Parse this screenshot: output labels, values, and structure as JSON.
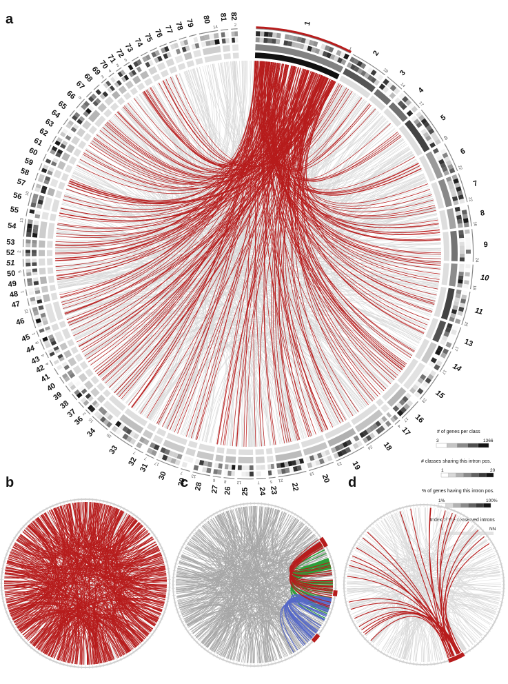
{
  "panels": {
    "a": "a",
    "b": "b",
    "c": "c",
    "d": "d"
  },
  "main_circle": {
    "classes": [
      {
        "label": "1",
        "count": "1"
      },
      {
        "label": "2",
        "count": "28"
      },
      {
        "label": "3",
        "count": "14"
      },
      {
        "label": "4",
        "count": "17"
      },
      {
        "label": "5",
        "count": "46"
      },
      {
        "label": "6",
        "count": "22"
      },
      {
        "label": "7",
        "count": "22"
      },
      {
        "label": "8",
        "count": "16"
      },
      {
        "label": "9",
        "count": "24"
      },
      {
        "label": "10",
        "count": "18"
      },
      {
        "label": "11",
        "count": "25"
      },
      {
        "label": "13",
        "count": "17"
      },
      {
        "label": "14",
        "count": "17"
      },
      {
        "label": "15",
        "count": "23"
      },
      {
        "label": "16",
        "count": "17"
      },
      {
        "label": "17",
        "count": "4"
      },
      {
        "label": "18",
        "count": "24"
      },
      {
        "label": "19",
        "count": "23"
      },
      {
        "label": "20",
        "count": "19"
      },
      {
        "label": "22",
        "count": "21"
      },
      {
        "label": "23",
        "count": "5"
      },
      {
        "label": "24",
        "count": "7"
      },
      {
        "label": "25",
        "count": "12"
      },
      {
        "label": "26",
        "count": "8"
      },
      {
        "label": "27",
        "count": "6"
      },
      {
        "label": "28",
        "count": "13"
      },
      {
        "label": "29",
        "count": "7"
      },
      {
        "label": "30",
        "count": "17"
      },
      {
        "label": "31",
        "count": "7"
      },
      {
        "label": "32",
        "count": "7"
      },
      {
        "label": "33",
        "count": "20"
      },
      {
        "label": "34",
        "count": "15"
      },
      {
        "label": "36",
        "count": "2"
      },
      {
        "label": "37",
        "count": ""
      },
      {
        "label": "38",
        "count": ""
      },
      {
        "label": "39",
        "count": ""
      },
      {
        "label": "40",
        "count": ""
      },
      {
        "label": "41",
        "count": ""
      },
      {
        "label": "42",
        "count": "4"
      },
      {
        "label": "43",
        "count": "4"
      },
      {
        "label": "44",
        "count": "8"
      },
      {
        "label": "45",
        "count": "1"
      },
      {
        "label": "46",
        "count": "15"
      },
      {
        "label": "47",
        "count": ""
      },
      {
        "label": "48",
        "count": "1"
      },
      {
        "label": "49",
        "count": ""
      },
      {
        "label": "50",
        "count": "5"
      },
      {
        "label": "51",
        "count": ""
      },
      {
        "label": "52",
        "count": "2"
      },
      {
        "label": "53",
        "count": ""
      },
      {
        "label": "54",
        "count": "13"
      },
      {
        "label": "55",
        "count": ""
      },
      {
        "label": "56",
        "count": "10"
      },
      {
        "label": "57",
        "count": ""
      },
      {
        "label": "58",
        "count": ""
      },
      {
        "label": "59",
        "count": ""
      },
      {
        "label": "60",
        "count": ""
      },
      {
        "label": "61",
        "count": ""
      },
      {
        "label": "62",
        "count": ""
      },
      {
        "label": "63",
        "count": ""
      },
      {
        "label": "64",
        "count": ""
      },
      {
        "label": "65",
        "count": ""
      },
      {
        "label": "66",
        "count": "9"
      },
      {
        "label": "67",
        "count": ""
      },
      {
        "label": "68",
        "count": ""
      },
      {
        "label": "69",
        "count": "3"
      },
      {
        "label": "70",
        "count": "4"
      },
      {
        "label": "71",
        "count": "3"
      },
      {
        "label": "72",
        "count": "5"
      },
      {
        "label": "73",
        "count": ""
      },
      {
        "label": "74",
        "count": ""
      },
      {
        "label": "75",
        "count": ""
      },
      {
        "label": "76",
        "count": ""
      },
      {
        "label": "77",
        "count": ""
      },
      {
        "label": "78",
        "count": ""
      },
      {
        "label": "79",
        "count": ""
      },
      {
        "label": "80",
        "count": "14"
      },
      {
        "label": "81",
        "count": ""
      },
      {
        "label": "82",
        "count": "2"
      }
    ]
  },
  "legend": {
    "genes_per_class": {
      "title": "# of genes per class",
      "min": "3",
      "max": "1366"
    },
    "classes_sharing": {
      "title": "# classes sharing this intron pos.",
      "min": "1",
      "max": "20"
    },
    "percent_genes": {
      "title": "% of genes having this intron pos.",
      "min": "1%",
      "max": "100%"
    },
    "conserved_index": {
      "title": "Index of the conserved introns",
      "min": "1",
      "max": "NN"
    }
  },
  "colors": {
    "red_link": "#b71c1c",
    "grey_link": "#d9d9d9",
    "c_grey_link": "#a6a6a6",
    "green_link": "#2e9e3a",
    "blue_link": "#5568c8"
  }
}
